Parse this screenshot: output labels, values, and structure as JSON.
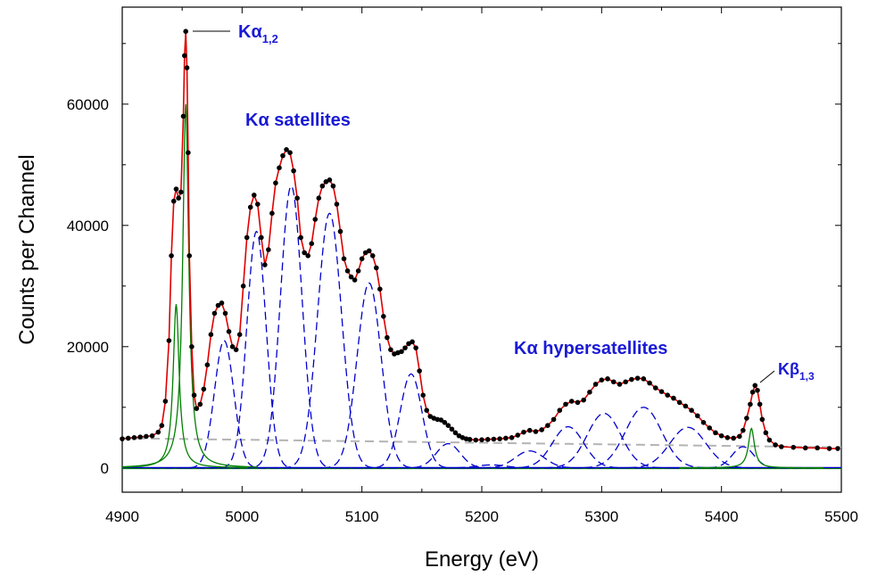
{
  "chart_data": {
    "type": "line",
    "xlabel": "Energy (eV)",
    "ylabel": "Counts per Channel",
    "xlim": [
      4900,
      5500
    ],
    "ylim": [
      -4000,
      76000
    ],
    "xticks": [
      "4900",
      "5000",
      "5100",
      "5200",
      "5300",
      "5400",
      "5500"
    ],
    "yticks": [
      "0",
      "20000",
      "40000",
      "60000"
    ],
    "annotations": [
      {
        "id": "ka12",
        "base": "Kα",
        "sub": "1,2",
        "x": 4953,
        "y": 71500
      },
      {
        "id": "ksat",
        "text": "Kα satellites",
        "x": 5040,
        "y": 56000
      },
      {
        "id": "khyp",
        "text": "Kα hypersatellites",
        "x": 5310,
        "y": 18000
      },
      {
        "id": "kb13",
        "base": "Kβ",
        "sub": "1,3",
        "x": 5428,
        "y": 13500
      }
    ],
    "colors": {
      "data": "#000000",
      "fit": "#e00000",
      "diagram": "#008000",
      "satellite": "#0000cc",
      "background": "#b4b4b4"
    },
    "background": {
      "name": "background",
      "x": [
        4900,
        5500
      ],
      "y": [
        4900,
        3400
      ]
    },
    "fit_components": {
      "diagram": [
        {
          "center": 4945,
          "amp": 27000,
          "width": 3
        },
        {
          "center": 4953,
          "amp": 60000,
          "width": 3
        },
        {
          "center": 5425,
          "amp": 6500,
          "width": 3
        }
      ],
      "satellites": [
        {
          "center": 4985,
          "amp": 21000,
          "width": 8
        },
        {
          "center": 5012,
          "amp": 39000,
          "width": 8
        },
        {
          "center": 5041,
          "amp": 46500,
          "width": 9
        },
        {
          "center": 5073,
          "amp": 42000,
          "width": 10
        },
        {
          "center": 5106,
          "amp": 30500,
          "width": 10
        },
        {
          "center": 5141,
          "amp": 15500,
          "width": 9
        },
        {
          "center": 5172,
          "amp": 4000,
          "width": 10
        },
        {
          "center": 5208,
          "amp": 500,
          "width": 12
        },
        {
          "center": 5240,
          "amp": 2800,
          "width": 12
        },
        {
          "center": 5272,
          "amp": 6800,
          "width": 13
        },
        {
          "center": 5302,
          "amp": 9000,
          "width": 14
        },
        {
          "center": 5335,
          "amp": 10000,
          "width": 15
        },
        {
          "center": 5372,
          "amp": 6700,
          "width": 15
        },
        {
          "center": 5418,
          "amp": 3500,
          "width": 9
        }
      ]
    },
    "data_points": {
      "x": [
        4900,
        4905,
        4910,
        4915,
        4920,
        4925,
        4930,
        4933,
        4936,
        4939,
        4941,
        4943,
        4945,
        4947,
        4949,
        4951,
        4952,
        4953,
        4954,
        4955,
        4956,
        4958,
        4960,
        4962,
        4965,
        4968,
        4971,
        4974,
        4977,
        4980,
        4983,
        4986,
        4989,
        4992,
        4995,
        4998,
        5001,
        5004,
        5007,
        5010,
        5013,
        5016,
        5019,
        5022,
        5025,
        5028,
        5031,
        5034,
        5037,
        5040,
        5043,
        5046,
        5049,
        5052,
        5055,
        5058,
        5061,
        5064,
        5067,
        5070,
        5073,
        5076,
        5079,
        5082,
        5085,
        5088,
        5091,
        5094,
        5097,
        5100,
        5103,
        5106,
        5109,
        5112,
        5115,
        5118,
        5121,
        5124,
        5127,
        5130,
        5133,
        5136,
        5139,
        5142,
        5145,
        5148,
        5151,
        5154,
        5157,
        5160,
        5163,
        5166,
        5169,
        5172,
        5175,
        5178,
        5181,
        5184,
        5187,
        5190,
        5195,
        5200,
        5205,
        5210,
        5215,
        5220,
        5225,
        5230,
        5235,
        5240,
        5245,
        5250,
        5255,
        5260,
        5265,
        5270,
        5275,
        5280,
        5285,
        5290,
        5295,
        5300,
        5305,
        5310,
        5315,
        5320,
        5325,
        5330,
        5335,
        5340,
        5345,
        5350,
        5355,
        5360,
        5365,
        5370,
        5375,
        5380,
        5385,
        5390,
        5395,
        5400,
        5405,
        5410,
        5415,
        5418,
        5421,
        5424,
        5426,
        5428,
        5430,
        5432,
        5434,
        5437,
        5440,
        5445,
        5450,
        5460,
        5470,
        5480,
        5490,
        5497
      ],
      "y": [
        4800,
        4900,
        5000,
        5100,
        5200,
        5300,
        5900,
        7000,
        11000,
        21000,
        35000,
        44000,
        46000,
        44500,
        45500,
        58000,
        68000,
        72000,
        66000,
        52000,
        35000,
        20000,
        12000,
        9800,
        10500,
        13000,
        17000,
        22000,
        25500,
        26800,
        27200,
        25500,
        22500,
        20000,
        19500,
        22000,
        30000,
        38000,
        43000,
        45000,
        43500,
        38000,
        33500,
        36000,
        42000,
        47000,
        49500,
        51500,
        52500,
        52000,
        49000,
        44500,
        38000,
        35500,
        35000,
        37000,
        41000,
        44500,
        46500,
        47200,
        47500,
        46500,
        43500,
        39000,
        34500,
        32500,
        31500,
        31000,
        32500,
        34500,
        35500,
        35800,
        35000,
        33000,
        29500,
        25000,
        21500,
        19500,
        18800,
        19000,
        19200,
        19800,
        20500,
        20800,
        19800,
        16000,
        12000,
        9500,
        8500,
        8200,
        8000,
        7900,
        7500,
        7000,
        6400,
        5800,
        5300,
        5000,
        4800,
        4700,
        4600,
        4650,
        4700,
        4750,
        4800,
        4900,
        5000,
        5400,
        5900,
        6200,
        6000,
        6300,
        7000,
        8000,
        9500,
        10500,
        11000,
        10800,
        11200,
        12500,
        13800,
        14500,
        14700,
        14200,
        13800,
        14200,
        14600,
        14800,
        14700,
        14000,
        13200,
        12600,
        12000,
        11500,
        10800,
        10200,
        9500,
        8600,
        7500,
        6600,
        5800,
        5300,
        5000,
        4900,
        5200,
        6200,
        8200,
        10500,
        12500,
        13600,
        12800,
        10500,
        8000,
        5800,
        4600,
        3800,
        3500,
        3400,
        3300,
        3300,
        3200,
        3200
      ]
    }
  }
}
